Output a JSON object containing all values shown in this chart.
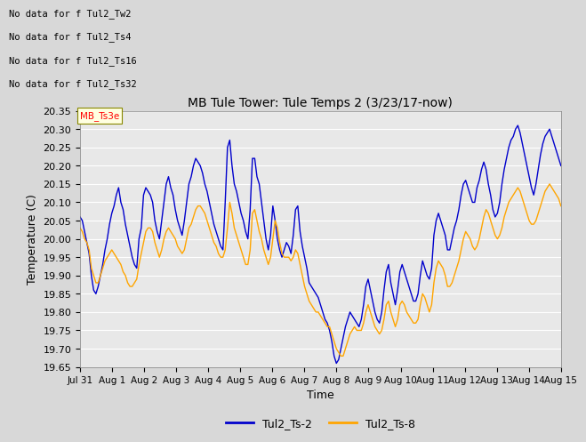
{
  "title": "MB Tule Tower: Tule Temps 2 (3/23/17-now)",
  "xlabel": "Time",
  "ylabel": "Temperature (C)",
  "ylim": [
    19.65,
    20.35
  ],
  "yticks": [
    19.65,
    19.7,
    19.75,
    19.8,
    19.85,
    19.9,
    19.95,
    20.0,
    20.05,
    20.1,
    20.15,
    20.2,
    20.25,
    20.3,
    20.35
  ],
  "xtick_labels": [
    "Jul 31",
    "Aug 1",
    "Aug 2",
    "Aug 3",
    "Aug 4",
    "Aug 5",
    "Aug 6",
    "Aug 7",
    "Aug 8",
    "Aug 9",
    "Aug 10",
    "Aug 11",
    "Aug 12",
    "Aug 13",
    "Aug 14",
    "Aug 15"
  ],
  "legend_labels": [
    "Tul2_Ts-2",
    "Tul2_Ts-8"
  ],
  "line1_color": "#0000cc",
  "line2_color": "#ffa500",
  "no_data_texts": [
    "No data for f Tul2_Tw2",
    "No data for f Tul2_Ts4",
    "No data for f Tul2_Ts16",
    "No data for f Tul2_Ts32"
  ],
  "tooltip_text": "MB_Ts3e",
  "background_color": "#d8d8d8",
  "plot_bg_color": "#e8e8e8",
  "ts2": [
    20.06,
    20.05,
    20.02,
    19.99,
    19.96,
    19.9,
    19.86,
    19.85,
    19.87,
    19.9,
    19.93,
    19.97,
    20.0,
    20.04,
    20.07,
    20.09,
    20.12,
    20.14,
    20.1,
    20.08,
    20.04,
    20.01,
    19.98,
    19.95,
    19.93,
    19.92,
    20.0,
    20.03,
    20.12,
    20.14,
    20.13,
    20.12,
    20.1,
    20.05,
    20.02,
    20.0,
    20.05,
    20.1,
    20.15,
    20.17,
    20.14,
    20.12,
    20.08,
    20.05,
    20.03,
    20.01,
    20.05,
    20.1,
    20.15,
    20.17,
    20.2,
    20.22,
    20.21,
    20.2,
    20.18,
    20.15,
    20.13,
    20.1,
    20.07,
    20.04,
    20.02,
    20.0,
    19.98,
    19.97,
    20.1,
    20.25,
    20.27,
    20.2,
    20.15,
    20.13,
    20.1,
    20.07,
    20.05,
    20.02,
    20.0,
    20.08,
    20.22,
    20.22,
    20.17,
    20.15,
    20.1,
    20.05,
    20.0,
    19.97,
    20.01,
    20.09,
    20.05,
    20.0,
    19.97,
    19.95,
    19.97,
    19.99,
    19.98,
    19.96,
    20.01,
    20.08,
    20.09,
    20.02,
    19.98,
    19.95,
    19.92,
    19.88,
    19.87,
    19.86,
    19.85,
    19.84,
    19.82,
    19.8,
    19.78,
    19.77,
    19.75,
    19.72,
    19.68,
    19.66,
    19.67,
    19.7,
    19.73,
    19.76,
    19.78,
    19.8,
    19.79,
    19.78,
    19.77,
    19.76,
    19.78,
    19.82,
    19.87,
    19.89,
    19.86,
    19.83,
    19.8,
    19.78,
    19.77,
    19.8,
    19.86,
    19.91,
    19.93,
    19.88,
    19.85,
    19.82,
    19.86,
    19.91,
    19.93,
    19.91,
    19.89,
    19.87,
    19.85,
    19.83,
    19.83,
    19.85,
    19.9,
    19.94,
    19.92,
    19.9,
    19.89,
    19.92,
    20.01,
    20.05,
    20.07,
    20.05,
    20.03,
    20.01,
    19.97,
    19.97,
    20.0,
    20.03,
    20.05,
    20.08,
    20.12,
    20.15,
    20.16,
    20.14,
    20.12,
    20.1,
    20.1,
    20.14,
    20.16,
    20.19,
    20.21,
    20.19,
    20.15,
    20.12,
    20.08,
    20.06,
    20.07,
    20.1,
    20.15,
    20.19,
    20.22,
    20.25,
    20.27,
    20.28,
    20.3,
    20.31,
    20.29,
    20.26,
    20.23,
    20.2,
    20.17,
    20.14,
    20.12,
    20.15,
    20.19,
    20.23,
    20.26,
    20.28,
    20.29,
    20.3,
    20.28,
    20.26,
    20.24,
    20.22,
    20.2
  ],
  "ts8": [
    20.03,
    20.02,
    20.0,
    19.99,
    19.97,
    19.92,
    19.9,
    19.88,
    19.88,
    19.9,
    19.92,
    19.94,
    19.95,
    19.96,
    19.97,
    19.96,
    19.95,
    19.94,
    19.93,
    19.91,
    19.9,
    19.88,
    19.87,
    19.87,
    19.88,
    19.89,
    19.93,
    19.96,
    19.99,
    20.02,
    20.03,
    20.03,
    20.02,
    19.99,
    19.97,
    19.95,
    19.97,
    20.0,
    20.02,
    20.03,
    20.02,
    20.01,
    20.0,
    19.98,
    19.97,
    19.96,
    19.97,
    20.0,
    20.03,
    20.04,
    20.06,
    20.08,
    20.09,
    20.09,
    20.08,
    20.07,
    20.05,
    20.03,
    20.01,
    19.99,
    19.98,
    19.96,
    19.95,
    19.95,
    19.97,
    20.03,
    20.1,
    20.07,
    20.03,
    20.01,
    19.99,
    19.97,
    19.95,
    19.93,
    19.93,
    19.97,
    20.07,
    20.08,
    20.05,
    20.02,
    20.0,
    19.97,
    19.95,
    19.93,
    19.95,
    20.0,
    20.05,
    20.03,
    19.99,
    19.96,
    19.95,
    19.95,
    19.95,
    19.94,
    19.95,
    19.97,
    19.96,
    19.93,
    19.9,
    19.87,
    19.85,
    19.83,
    19.82,
    19.81,
    19.8,
    19.8,
    19.79,
    19.78,
    19.77,
    19.76,
    19.76,
    19.74,
    19.72,
    19.7,
    19.69,
    19.68,
    19.68,
    19.7,
    19.72,
    19.74,
    19.75,
    19.76,
    19.75,
    19.75,
    19.75,
    19.77,
    19.8,
    19.82,
    19.8,
    19.78,
    19.76,
    19.75,
    19.74,
    19.75,
    19.78,
    19.82,
    19.83,
    19.8,
    19.78,
    19.76,
    19.78,
    19.82,
    19.83,
    19.82,
    19.8,
    19.79,
    19.78,
    19.77,
    19.77,
    19.78,
    19.82,
    19.85,
    19.84,
    19.82,
    19.8,
    19.82,
    19.88,
    19.92,
    19.94,
    19.93,
    19.92,
    19.9,
    19.87,
    19.87,
    19.88,
    19.9,
    19.92,
    19.94,
    19.97,
    20.0,
    20.02,
    20.01,
    20.0,
    19.98,
    19.97,
    19.98,
    20.0,
    20.03,
    20.06,
    20.08,
    20.07,
    20.05,
    20.03,
    20.01,
    20.0,
    20.01,
    20.03,
    20.06,
    20.08,
    20.1,
    20.11,
    20.12,
    20.13,
    20.14,
    20.13,
    20.11,
    20.09,
    20.07,
    20.05,
    20.04,
    20.04,
    20.05,
    20.07,
    20.09,
    20.11,
    20.13,
    20.14,
    20.15,
    20.14,
    20.13,
    20.12,
    20.11,
    20.09
  ]
}
